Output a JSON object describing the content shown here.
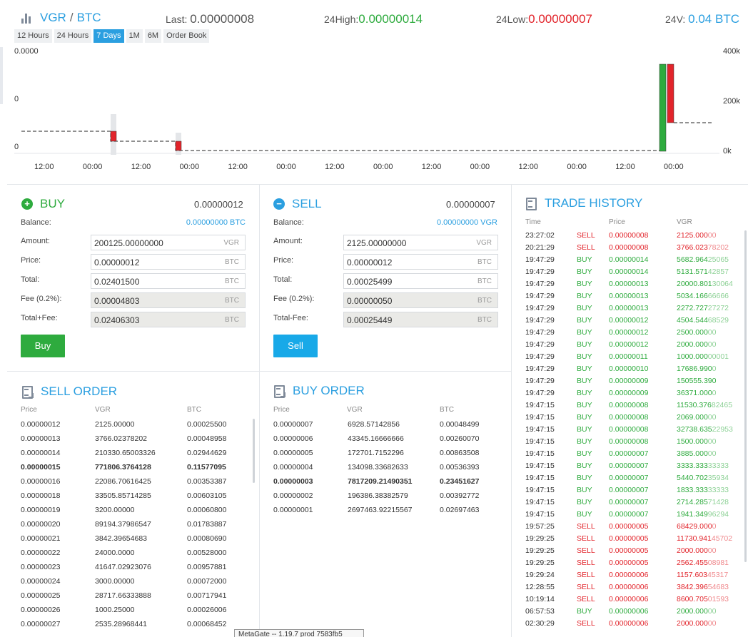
{
  "header": {
    "base": "VGR",
    "separator": "/",
    "quote": "BTC",
    "last_label": "Last:",
    "last_value": "0.00000008",
    "high_label": "24High:",
    "high_value": "0.00000014",
    "low_label": "24Low:",
    "low_value": "0.00000007",
    "vol_label": "24V:",
    "vol_value": "0.04 BTC"
  },
  "tabs": [
    "12 Hours",
    "24 Hours",
    "7 Days",
    "1M",
    "6M",
    "Order Book"
  ],
  "active_tab": "7 Days",
  "chart_data": {
    "type": "candlestick",
    "y_left_ticks": [
      "0.0000",
      "0",
      "0"
    ],
    "y_right_ticks": [
      "400k",
      "200k",
      "0k"
    ],
    "x_ticks": [
      "12:00",
      "00:00",
      "12:00",
      "00:00",
      "12:00",
      "00:00",
      "12:00",
      "00:00",
      "12:00",
      "00:00",
      "12:00",
      "00:00",
      "12:00",
      "00:00"
    ],
    "candles": [
      {
        "pos": 0.214,
        "open": 8e-08,
        "close": 6e-08,
        "color": "red"
      },
      {
        "pos": 0.356,
        "open": 6e-08,
        "close": 5e-08,
        "color": "red"
      },
      {
        "pos": 0.923,
        "open": 5e-08,
        "close": 1.4e-07,
        "color": "green"
      },
      {
        "pos": 0.937,
        "open": 1.4e-07,
        "close": 8e-08,
        "color": "red"
      }
    ],
    "colors": {
      "up": "#2eab3e",
      "down": "#e2242b",
      "volume": "#e4e6e9"
    }
  },
  "buy": {
    "title": "BUY",
    "price_top": "0.00000012",
    "balance_label": "Balance:",
    "balance_value": "0.00000000 BTC",
    "amount_label": "Amount:",
    "amount_value": "200125.00000000",
    "amount_unit": "VGR",
    "price_label": "Price:",
    "price_value": "0.00000012",
    "price_unit": "BTC",
    "total_label": "Total:",
    "total_value": "0.02401500",
    "total_unit": "BTC",
    "fee_label": "Fee (0.2%):",
    "fee_value": "0.00004803",
    "fee_unit": "BTC",
    "net_label": "Total+Fee:",
    "net_value": "0.02406303",
    "net_unit": "BTC",
    "button": "Buy"
  },
  "sell": {
    "title": "SELL",
    "price_top": "0.00000007",
    "balance_label": "Balance:",
    "balance_value": "0.00000000 VGR",
    "amount_label": "Amount:",
    "amount_value": "2125.00000000",
    "amount_unit": "VGR",
    "price_label": "Price:",
    "price_value": "0.00000012",
    "price_unit": "BTC",
    "total_label": "Total:",
    "total_value": "0.00025499",
    "total_unit": "BTC",
    "fee_label": "Fee (0.2%):",
    "fee_value": "0.00000050",
    "fee_unit": "BTC",
    "net_label": "Total-Fee:",
    "net_value": "0.00025449",
    "net_unit": "BTC",
    "button": "Sell"
  },
  "sell_orders": {
    "title": "SELL ORDER",
    "columns": [
      "Price",
      "VGR",
      "BTC"
    ],
    "rows": [
      [
        "0.00000012",
        "2125.00000",
        "0.00025500",
        false
      ],
      [
        "0.00000013",
        "3766.02378202",
        "0.00048958",
        false
      ],
      [
        "0.00000014",
        "210330.65003326",
        "0.02944629",
        false
      ],
      [
        "0.00000015",
        "771806.3764128",
        "0.11577095",
        true
      ],
      [
        "0.00000016",
        "22086.70616425",
        "0.00353387",
        false
      ],
      [
        "0.00000018",
        "33505.85714285",
        "0.00603105",
        false
      ],
      [
        "0.00000019",
        "3200.00000",
        "0.00060800",
        false
      ],
      [
        "0.00000020",
        "89194.37986547",
        "0.01783887",
        false
      ],
      [
        "0.00000021",
        "3842.39654683",
        "0.00080690",
        false
      ],
      [
        "0.00000022",
        "24000.0000",
        "0.00528000",
        false
      ],
      [
        "0.00000023",
        "41647.02923076",
        "0.00957881",
        false
      ],
      [
        "0.00000024",
        "3000.00000",
        "0.00072000",
        false
      ],
      [
        "0.00000025",
        "28717.66333888",
        "0.00717941",
        false
      ],
      [
        "0.00000026",
        "1000.25000",
        "0.00026006",
        false
      ],
      [
        "0.00000027",
        "2535.28968441",
        "0.00068452",
        false
      ]
    ]
  },
  "buy_orders": {
    "title": "BUY ORDER",
    "columns": [
      "Price",
      "VGR",
      "BTC"
    ],
    "rows": [
      [
        "0.00000007",
        "6928.57142856",
        "0.00048499",
        false
      ],
      [
        "0.00000006",
        "43345.16666666",
        "0.00260070",
        false
      ],
      [
        "0.00000005",
        "172701.7152296",
        "0.00863508",
        false
      ],
      [
        "0.00000004",
        "134098.33682633",
        "0.00536393",
        false
      ],
      [
        "0.00000003",
        "7817209.21490351",
        "0.23451627",
        true
      ],
      [
        "0.00000002",
        "196386.38382579",
        "0.00392772",
        false
      ],
      [
        "0.00000001",
        "2697463.92215567",
        "0.02697463",
        false
      ]
    ]
  },
  "trade_history": {
    "title": "TRADE HISTORY",
    "columns": [
      "Time",
      "Price",
      "VGR"
    ],
    "rows": [
      [
        "23:27:02",
        "SELL",
        "0.00000008",
        "2125.000",
        "00"
      ],
      [
        "20:21:29",
        "SELL",
        "0.00000008",
        "3766.023",
        "78202"
      ],
      [
        "19:47:29",
        "BUY",
        "0.00000014",
        "5682.964",
        "25065"
      ],
      [
        "19:47:29",
        "BUY",
        "0.00000014",
        "5131.571",
        "42857"
      ],
      [
        "19:47:29",
        "BUY",
        "0.00000013",
        "20000.801",
        "30064"
      ],
      [
        "19:47:29",
        "BUY",
        "0.00000013",
        "5034.166",
        "66666"
      ],
      [
        "19:47:29",
        "BUY",
        "0.00000013",
        "2272.727",
        "27272"
      ],
      [
        "19:47:29",
        "BUY",
        "0.00000012",
        "4504.544",
        "68529"
      ],
      [
        "19:47:29",
        "BUY",
        "0.00000012",
        "2500.000",
        "00"
      ],
      [
        "19:47:29",
        "BUY",
        "0.00000012",
        "2000.000",
        "00"
      ],
      [
        "19:47:29",
        "BUY",
        "0.00000011",
        "1000.000",
        "00001"
      ],
      [
        "19:47:29",
        "BUY",
        "0.00000010",
        "17686.990",
        "0"
      ],
      [
        "19:47:29",
        "BUY",
        "0.00000009",
        "150555.390",
        ""
      ],
      [
        "19:47:29",
        "BUY",
        "0.00000009",
        "36371.000",
        "0"
      ],
      [
        "19:47:15",
        "BUY",
        "0.00000008",
        "11530.376",
        "82465"
      ],
      [
        "19:47:15",
        "BUY",
        "0.00000008",
        "2069.000",
        "00"
      ],
      [
        "19:47:15",
        "BUY",
        "0.00000008",
        "32738.635",
        "22953"
      ],
      [
        "19:47:15",
        "BUY",
        "0.00000008",
        "1500.000",
        "00"
      ],
      [
        "19:47:15",
        "BUY",
        "0.00000007",
        "3885.000",
        "00"
      ],
      [
        "19:47:15",
        "BUY",
        "0.00000007",
        "3333.333",
        "33333"
      ],
      [
        "19:47:15",
        "BUY",
        "0.00000007",
        "5440.702",
        "35934"
      ],
      [
        "19:47:15",
        "BUY",
        "0.00000007",
        "1833.333",
        "33333"
      ],
      [
        "19:47:15",
        "BUY",
        "0.00000007",
        "2714.285",
        "71428"
      ],
      [
        "19:47:15",
        "BUY",
        "0.00000007",
        "1941.349",
        "96294"
      ],
      [
        "19:57:25",
        "SELL",
        "0.00000005",
        "68429.000",
        "0"
      ],
      [
        "19:29:25",
        "SELL",
        "0.00000005",
        "11730.941",
        "45702"
      ],
      [
        "19:29:25",
        "SELL",
        "0.00000005",
        "2000.000",
        "00"
      ],
      [
        "19:29:25",
        "SELL",
        "0.00000005",
        "2562.455",
        "08981"
      ],
      [
        "19:29:24",
        "SELL",
        "0.00000006",
        "1157.603",
        "45317"
      ],
      [
        "12:28:55",
        "SELL",
        "0.00000006",
        "3842.396",
        "54683"
      ],
      [
        "10:19:14",
        "SELL",
        "0.00000006",
        "8600.705",
        "01593"
      ],
      [
        "06:57:53",
        "BUY",
        "0.00000006",
        "2000.000",
        "00"
      ],
      [
        "02:30:29",
        "SELL",
        "0.00000006",
        "2000.000",
        "00"
      ]
    ]
  },
  "tooltip": "MetaGate -- 1.19.7 prod 7583fb5"
}
